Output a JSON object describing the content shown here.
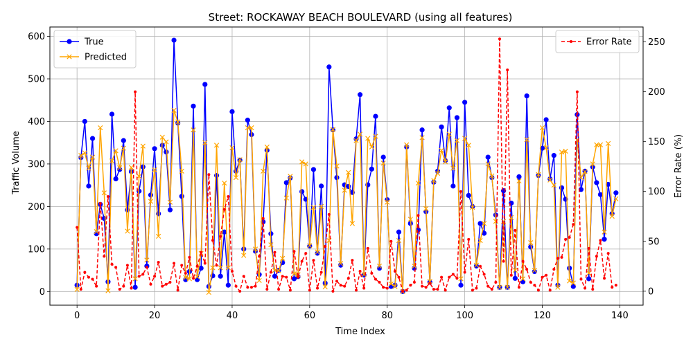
{
  "chart_data": {
    "type": "line",
    "title": "Street: ROCKAWAY BEACH BOULEVARD (using all features)",
    "xlabel": "Time Index",
    "ylabel": "Traffic Volume",
    "ylabel_right": "Error Rate (%)",
    "xlim": [
      -7,
      146
    ],
    "ylim": [
      -32,
      622
    ],
    "ylim_right": [
      -14,
      265
    ],
    "x_ticks": [
      0,
      20,
      40,
      60,
      80,
      100,
      120,
      140
    ],
    "y_ticks": [
      0,
      100,
      200,
      300,
      400,
      500,
      600
    ],
    "y_ticks_right": [
      0,
      50,
      100,
      150,
      200,
      250
    ],
    "grid": true,
    "legend_left_placement": "upper-left",
    "legend_right_placement": "upper-right",
    "series": [
      {
        "name": "True",
        "axis": "left",
        "color": "#0000ff",
        "marker": "circle",
        "values": [
          15,
          315,
          400,
          248,
          360,
          136,
          205,
          172,
          23,
          417,
          265,
          287,
          355,
          192,
          282,
          10,
          236,
          293,
          60,
          227,
          336,
          183,
          344,
          328,
          192,
          591,
          396,
          224,
          28,
          47,
          436,
          28,
          55,
          487,
          12,
          37,
          273,
          36,
          140,
          15,
          423,
          283,
          309,
          100,
          403,
          369,
          95,
          40,
          164,
          332,
          136,
          36,
          50,
          68,
          256,
          267,
          30,
          35,
          235,
          217,
          107,
          287,
          90,
          248,
          20,
          528,
          380,
          268,
          62,
          251,
          247,
          233,
          359,
          463,
          39,
          251,
          288,
          412,
          55,
          316,
          216,
          12,
          15,
          140,
          0,
          340,
          160,
          55,
          145,
          380,
          188,
          22,
          257,
          283,
          387,
          308,
          432,
          248,
          409,
          15,
          445,
          226,
          200,
          60,
          160,
          137,
          316,
          268,
          180,
          10,
          237,
          10,
          208,
          31,
          270,
          23,
          460,
          105,
          47,
          273,
          337,
          404,
          265,
          320,
          15,
          244,
          217,
          55,
          12,
          416,
          240,
          283,
          30,
          293,
          256,
          228,
          123,
          252,
          183,
          232
        ]
      },
      {
        "name": "Predicted",
        "axis": "left",
        "color": "#ffa500",
        "marker": "x",
        "values": [
          5,
          320,
          326,
          290,
          316,
          141,
          385,
          232,
          2,
          307,
          331,
          291,
          337,
          142,
          292,
          30,
          271,
          342,
          74,
          212,
          286,
          130,
          363,
          352,
          210,
          426,
          399,
          283,
          33,
          30,
          380,
          35,
          90,
          350,
          -2,
          56,
          344,
          56,
          255,
          56,
          338,
          268,
          310,
          85,
          385,
          385,
          100,
          26,
          283,
          340,
          110,
          50,
          49,
          78,
          220,
          271,
          42,
          40,
          305,
          300,
          108,
          198,
          93,
          200,
          11,
          120,
          381,
          295,
          66,
          238,
          280,
          160,
          355,
          370,
          40,
          360,
          340,
          365,
          60,
          302,
          210,
          18,
          12,
          120,
          0,
          345,
          170,
          60,
          255,
          362,
          195,
          24,
          261,
          278,
          332,
          305,
          370,
          290,
          355,
          30,
          360,
          344,
          198,
          62,
          120,
          160,
          300,
          272,
          165,
          10,
          165,
          10,
          174,
          50,
          260,
          30,
          357,
          115,
          50,
          275,
          385,
          338,
          262,
          250,
          10,
          328,
          330,
          25,
          20,
          356,
          268,
          282,
          43,
          300,
          345,
          345,
          140,
          348,
          177,
          218
        ]
      },
      {
        "name": "Error Rate",
        "axis": "right",
        "color": "#ff0000",
        "marker": "dot",
        "dashed": true,
        "values": [
          64,
          2,
          19,
          14,
          12,
          5,
          88,
          35,
          95,
          27,
          24,
          2,
          5,
          26,
          3,
          200,
          15,
          17,
          24,
          7,
          15,
          29,
          5,
          7,
          9,
          28,
          1,
          26,
          18,
          34,
          13,
          25,
          39,
          28,
          117,
          51,
          26,
          55,
          82,
          95,
          20,
          5,
          0,
          15,
          4,
          4,
          5,
          35,
          73,
          2,
          19,
          39,
          2,
          15,
          14,
          1,
          40,
          14,
          30,
          38,
          1,
          31,
          3,
          19,
          45,
          77,
          0,
          10,
          6,
          5,
          13,
          31,
          1,
          20,
          3,
          43,
          18,
          12,
          9,
          4,
          3,
          50,
          20,
          14,
          0,
          1,
          6,
          9,
          76,
          5,
          4,
          8,
          2,
          2,
          14,
          1,
          14,
          17,
          13,
          100,
          19,
          52,
          1,
          3,
          25,
          17,
          5,
          2,
          9,
          253,
          30,
          222,
          16,
          61,
          4,
          30,
          22,
          9,
          6,
          1,
          14,
          16,
          1,
          22,
          33,
          34,
          52,
          54,
          67,
          200,
          12,
          3,
          43,
          2,
          35,
          51,
          13,
          38,
          4,
          6
        ]
      }
    ]
  }
}
